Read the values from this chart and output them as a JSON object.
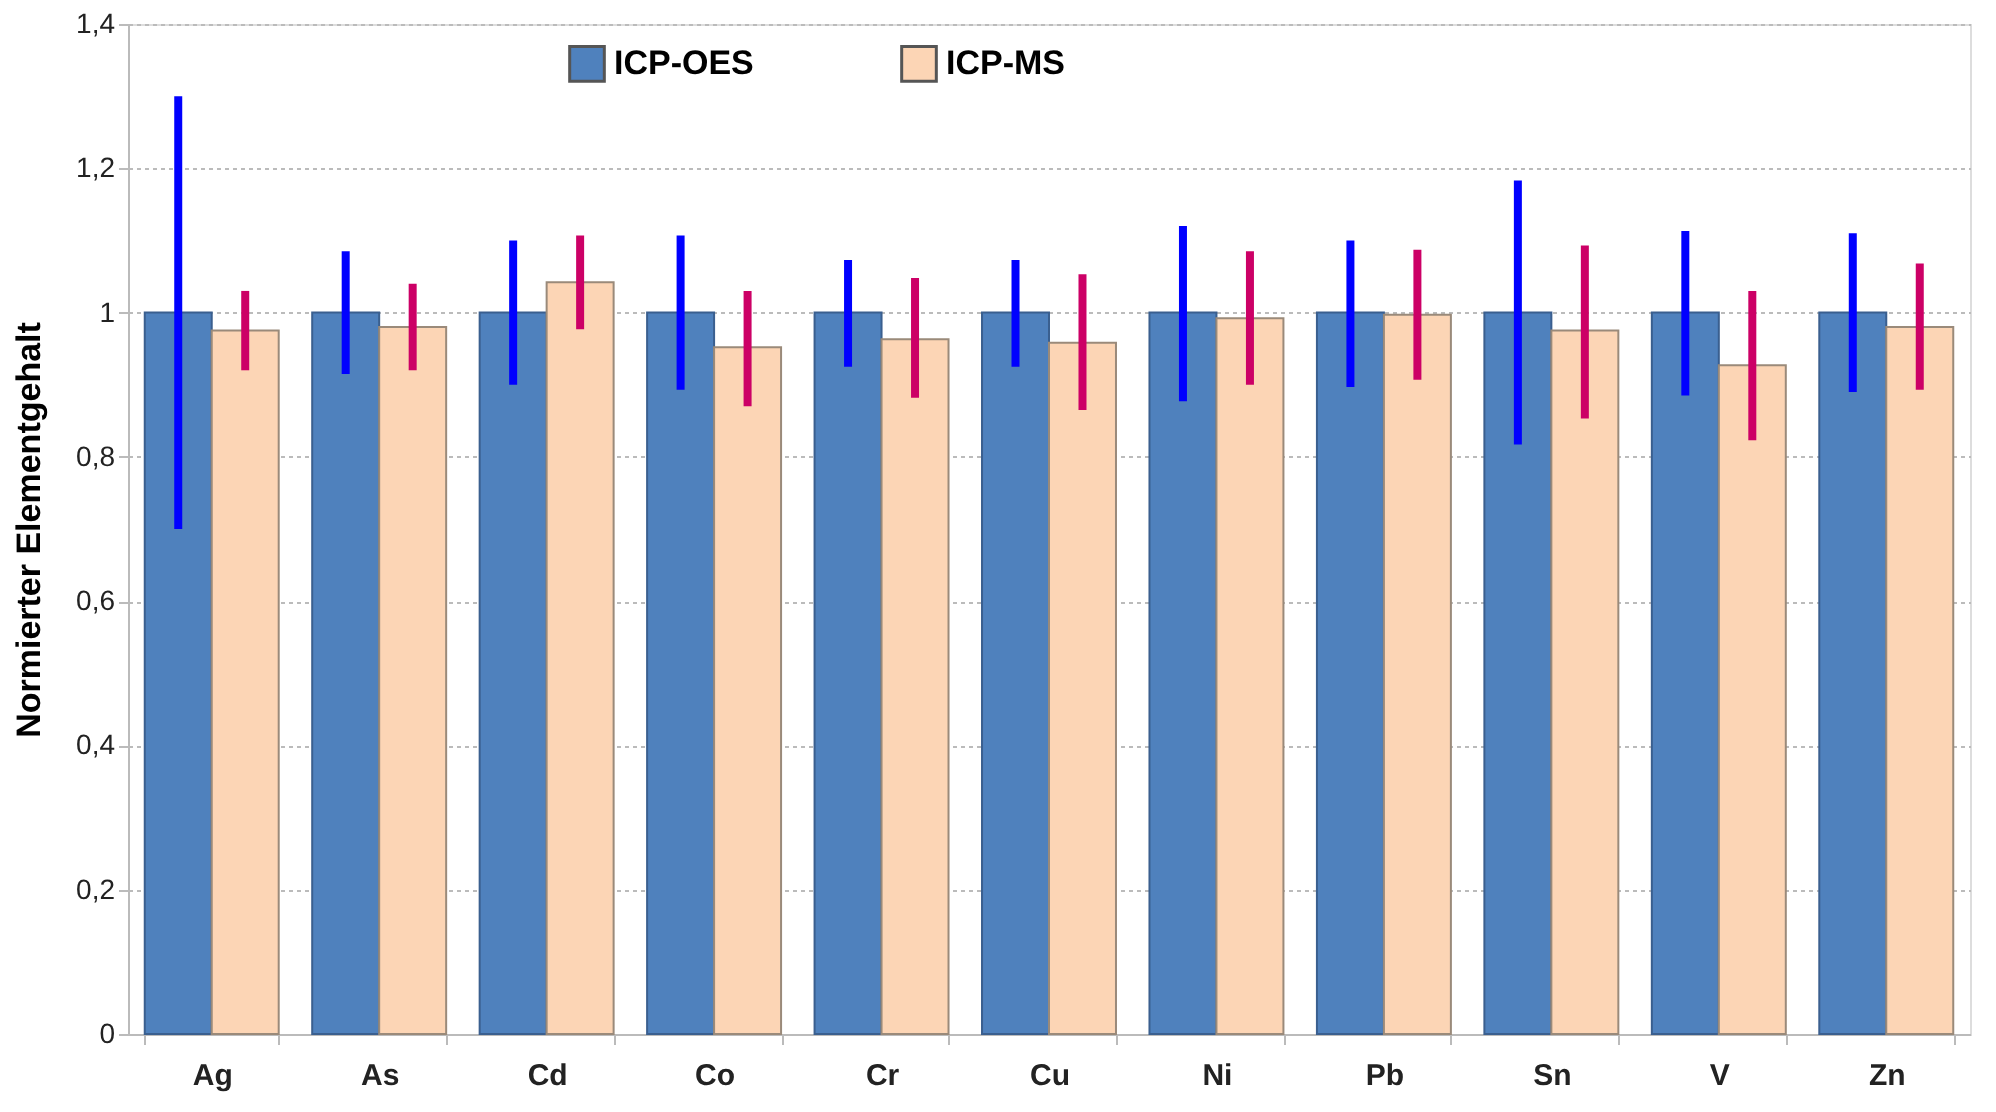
{
  "chart_data": {
    "type": "bar",
    "ylabel": "Normierter Elementgehalt",
    "categories": [
      "Ag",
      "As",
      "Cd",
      "Co",
      "Cr",
      "Cu",
      "Ni",
      "Pb",
      "Sn",
      "V",
      "Zn"
    ],
    "series": [
      {
        "name": "ICP-OES",
        "color": "#4f81bd",
        "values": [
          1,
          1,
          1,
          1,
          1,
          1,
          1,
          1,
          1,
          1,
          1
        ],
        "errors": [
          [
            0.7,
            1.3
          ],
          [
            0.915,
            1.085
          ],
          [
            0.9,
            1.1
          ],
          [
            0.893,
            1.107
          ],
          [
            0.925,
            1.073
          ],
          [
            0.925,
            1.073
          ],
          [
            0.877,
            1.12
          ],
          [
            0.897,
            1.1
          ],
          [
            0.817,
            1.183
          ],
          [
            0.885,
            1.113
          ],
          [
            0.89,
            1.11
          ]
        ]
      },
      {
        "name": "ICP-MS",
        "color": "#fcd5b5",
        "values": [
          0.975,
          0.98,
          1.042,
          0.952,
          0.963,
          0.958,
          0.992,
          0.997,
          0.975,
          0.927,
          0.98
        ],
        "errors": [
          [
            0.92,
            1.03
          ],
          [
            0.92,
            1.04
          ],
          [
            0.977,
            1.107
          ],
          [
            0.87,
            1.03
          ],
          [
            0.882,
            1.048
          ],
          [
            0.865,
            1.053
          ],
          [
            0.9,
            1.085
          ],
          [
            0.907,
            1.087
          ],
          [
            0.853,
            1.093
          ],
          [
            0.823,
            1.03
          ],
          [
            0.893,
            1.068
          ]
        ]
      }
    ],
    "ylim": [
      0,
      1.4
    ],
    "yticks": [
      0,
      {
        "value": 0.2,
        "label": "0,2"
      },
      {
        "value": 0.4,
        "label": "0,4"
      },
      {
        "value": 0.6,
        "label": "0,6"
      },
      {
        "value": 0.8,
        "label": "0,8"
      },
      1,
      {
        "value": 1.2,
        "label": "1,2"
      },
      {
        "value": 1.4,
        "label": "1,4"
      }
    ],
    "grid": "y",
    "legend": "top"
  }
}
